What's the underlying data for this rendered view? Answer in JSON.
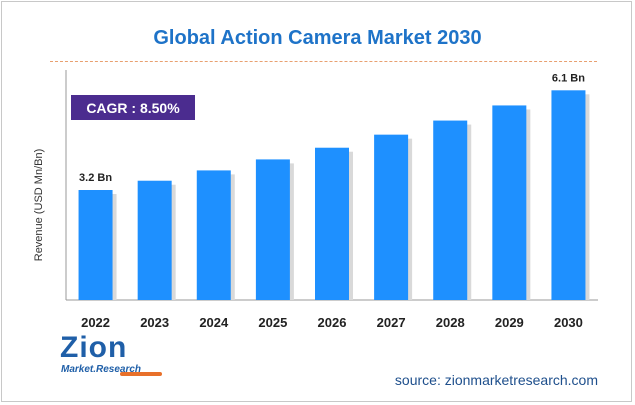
{
  "title": "Global Action Camera Market 2030",
  "cagr_label": "CAGR : 8.50%",
  "source": "source: zionmarketresearch.com",
  "logo": {
    "word": "Zion",
    "sub": "Market.Research"
  },
  "colors": {
    "bar": "#1e90ff",
    "title": "#1e73c8",
    "cagr_bg": "#4b2c8f",
    "axis": "#999999"
  },
  "chart_data": {
    "type": "bar",
    "categories": [
      "2022",
      "2023",
      "2024",
      "2025",
      "2026",
      "2027",
      "2028",
      "2029",
      "2030"
    ],
    "values": [
      3.2,
      3.47,
      3.77,
      4.09,
      4.43,
      4.81,
      5.22,
      5.66,
      6.1
    ],
    "ylabel": "Revenue (USD Mn/Bn)",
    "ylim": [
      0,
      6.4
    ],
    "data_labels": [
      {
        "index": 0,
        "text": "3.2 Bn"
      },
      {
        "index": 8,
        "text": "6.1 Bn"
      }
    ],
    "grid": false,
    "legend": "none"
  }
}
